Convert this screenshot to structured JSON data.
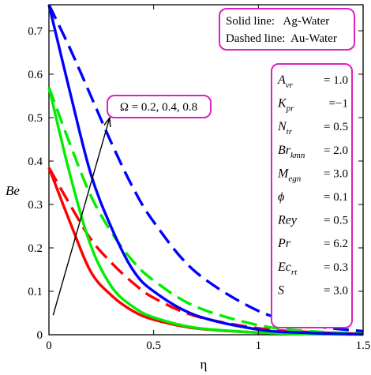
{
  "chart_data": {
    "type": "line",
    "xlabel": "η",
    "ylabel": "Be",
    "xlim": [
      0,
      1.5
    ],
    "ylim": [
      0,
      0.76
    ],
    "x_ticks": [
      "0",
      "0.5",
      "1",
      "1.5"
    ],
    "y_ticks": [
      "0",
      "0.1",
      "0.2",
      "0.3",
      "0.4",
      "0.5",
      "0.6",
      "0.7"
    ],
    "x_tick_values": [
      0,
      0.5,
      1,
      1.5
    ],
    "y_tick_values": [
      0,
      0.1,
      0.2,
      0.3,
      0.4,
      0.5,
      0.6,
      0.7
    ],
    "series": [
      {
        "color": "#ff0000",
        "dash": false,
        "x": [
          0,
          0.1,
          0.2,
          0.3,
          0.4,
          0.5,
          0.7,
          1.0,
          1.25,
          1.5
        ],
        "y": [
          0.385,
          0.26,
          0.145,
          0.09,
          0.055,
          0.035,
          0.015,
          0.005,
          0.002,
          0.001
        ]
      },
      {
        "color": "#ff0000",
        "dash": true,
        "x": [
          0,
          0.1,
          0.2,
          0.3,
          0.4,
          0.5,
          0.7,
          1.0,
          1.25,
          1.5
        ],
        "y": [
          0.385,
          0.3,
          0.22,
          0.165,
          0.12,
          0.085,
          0.043,
          0.015,
          0.006,
          0.002
        ]
      },
      {
        "color": "#00ee00",
        "dash": false,
        "x": [
          0,
          0.1,
          0.2,
          0.3,
          0.4,
          0.5,
          0.7,
          1.0,
          1.25,
          1.5
        ],
        "y": [
          0.57,
          0.37,
          0.205,
          0.11,
          0.065,
          0.04,
          0.016,
          0.005,
          0.002,
          0.001
        ]
      },
      {
        "color": "#00ee00",
        "dash": true,
        "x": [
          0,
          0.1,
          0.2,
          0.3,
          0.4,
          0.5,
          0.7,
          1.0,
          1.25,
          1.5
        ],
        "y": [
          0.57,
          0.44,
          0.32,
          0.235,
          0.17,
          0.125,
          0.065,
          0.022,
          0.008,
          0.003
        ]
      },
      {
        "color": "#0000ff",
        "dash": false,
        "x": [
          0,
          0.1,
          0.2,
          0.3,
          0.4,
          0.5,
          0.7,
          1.0,
          1.25,
          1.5
        ],
        "y": [
          0.76,
          0.56,
          0.37,
          0.245,
          0.15,
          0.1,
          0.045,
          0.012,
          0.004,
          0.001
        ]
      },
      {
        "color": "#0000ff",
        "dash": true,
        "x": [
          0,
          0.1,
          0.2,
          0.3,
          0.4,
          0.5,
          0.7,
          1.0,
          1.25,
          1.5
        ],
        "y": [
          0.76,
          0.66,
          0.55,
          0.44,
          0.34,
          0.26,
          0.145,
          0.055,
          0.022,
          0.008
        ]
      }
    ],
    "arrow": {
      "from": [
        0.02,
        0.045
      ],
      "to": [
        0.29,
        0.5
      ]
    },
    "annotation": "Ω = 0.2, 0.4, 0.8",
    "legend_box": [
      "Solid line:   Ag-Water",
      "Dashed line:  Au-Water"
    ],
    "parameters": [
      {
        "name": "A",
        "sub": "vr",
        "value": "= 1.0"
      },
      {
        "name": "K",
        "sub": "pr",
        "value": "=−1"
      },
      {
        "name": "N",
        "sub": "tr",
        "value": "= 0.5"
      },
      {
        "name": "Br",
        "sub": "kmn",
        "value": "= 2.0"
      },
      {
        "name": "M",
        "sub": "egn",
        "value": "= 3.0"
      },
      {
        "name": "ϕ",
        "sub": "",
        "value": "= 0.1"
      },
      {
        "name": "Rey",
        "sub": "",
        "value": "= 0.5"
      },
      {
        "name": "Pr",
        "sub": "",
        "value": "= 6.2"
      },
      {
        "name": "Ec",
        "sub": "rt",
        "value": "= 0.3"
      },
      {
        "name": "S",
        "sub": "",
        "value": "= 3.0"
      }
    ],
    "grid": false,
    "box_color": "#e020c0"
  }
}
